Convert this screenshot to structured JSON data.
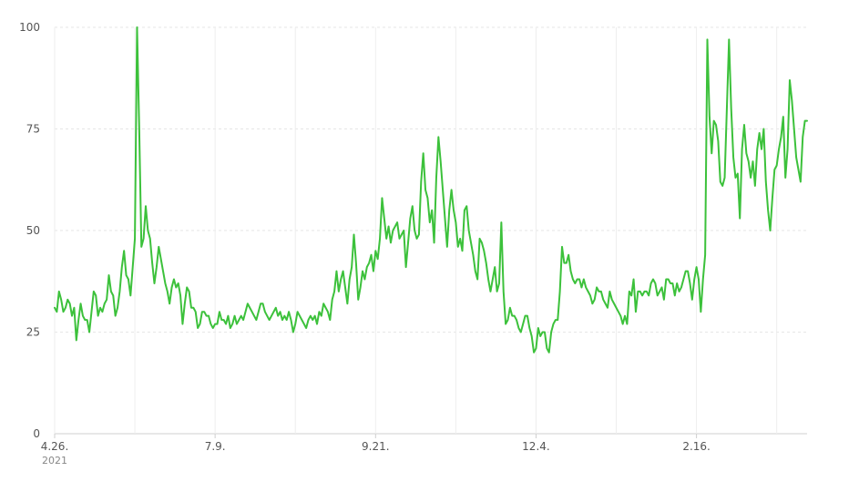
{
  "chart_data": {
    "type": "line",
    "title": "",
    "xlabel": "",
    "ylabel": "",
    "ylim": [
      0,
      100
    ],
    "y_ticks": [
      0,
      25,
      50,
      75,
      100
    ],
    "y_tick_labels": [
      "0",
      "25",
      "50",
      "75",
      "100"
    ],
    "x_ticks": [
      {
        "label": "4.26.",
        "index": 0
      },
      {
        "label": "7.9.",
        "index": 74
      },
      {
        "label": "9.21.",
        "index": 148
      },
      {
        "label": "12.4.",
        "index": 222
      },
      {
        "label": "2.16.",
        "index": 296
      }
    ],
    "x_year_label": "2021",
    "grid": true,
    "legend": "none",
    "color": "#3cc13b",
    "series": [
      {
        "values": [
          31,
          30,
          35,
          33,
          30,
          31,
          33,
          32,
          29,
          31,
          23,
          28,
          32,
          29,
          28,
          28,
          25,
          30,
          35,
          34,
          29,
          31,
          30,
          32,
          33,
          39,
          35,
          34,
          29,
          31,
          35,
          41,
          45,
          39,
          38,
          34,
          41,
          48,
          100,
          75,
          46,
          48,
          56,
          50,
          48,
          42,
          37,
          41,
          46,
          43,
          40,
          37,
          35,
          32,
          36,
          38,
          36,
          37,
          34,
          27,
          32,
          36,
          35,
          31,
          31,
          30,
          26,
          27,
          30,
          30,
          29,
          29,
          27,
          26,
          27,
          27,
          30,
          28,
          28,
          27,
          29,
          26,
          27,
          29,
          27,
          28,
          29,
          28,
          30,
          32,
          31,
          30,
          29,
          28,
          30,
          32,
          32,
          30,
          29,
          28,
          29,
          30,
          31,
          29,
          30,
          28,
          29,
          28,
          30,
          28,
          25,
          27,
          30,
          29,
          28,
          27,
          26,
          28,
          29,
          28,
          29,
          27,
          30,
          29,
          32,
          31,
          30,
          28,
          33,
          35,
          40,
          35,
          38,
          40,
          36,
          32,
          38,
          41,
          49,
          42,
          33,
          36,
          40,
          38,
          41,
          42,
          44,
          40,
          45,
          43,
          48,
          58,
          53,
          48,
          51,
          47,
          50,
          51,
          52,
          48,
          49,
          50,
          41,
          47,
          53,
          56,
          50,
          48,
          49,
          62,
          69,
          60,
          58,
          52,
          55,
          47,
          63,
          73,
          67,
          60,
          53,
          46,
          55,
          60,
          55,
          52,
          46,
          48,
          45,
          55,
          56,
          50,
          47,
          44,
          40,
          38,
          48,
          47,
          45,
          42,
          38,
          35,
          38,
          41,
          35,
          37,
          52,
          35,
          27,
          28,
          31,
          29,
          29,
          28,
          26,
          25,
          27,
          29,
          29,
          26,
          24,
          20,
          21,
          26,
          24,
          25,
          25,
          21,
          20,
          25,
          27,
          28,
          28,
          35,
          46,
          42,
          42,
          44,
          40,
          38,
          37,
          38,
          38,
          36,
          38,
          36,
          35,
          34,
          32,
          33,
          36,
          35,
          35,
          33,
          32,
          31,
          35,
          33,
          32,
          31,
          30,
          29,
          27,
          29,
          27,
          35,
          34,
          38,
          30,
          35,
          35,
          34,
          35,
          35,
          34,
          37,
          38,
          37,
          34,
          35,
          36,
          33,
          38,
          38,
          37,
          37,
          34,
          37,
          35,
          36,
          38,
          40,
          40,
          37,
          33,
          38,
          41,
          38,
          30,
          38,
          44,
          97,
          78,
          69,
          77,
          76,
          72,
          62,
          61,
          63,
          80,
          97,
          80,
          68,
          63,
          64,
          53,
          70,
          76,
          69,
          67,
          63,
          67,
          61,
          70,
          74,
          70,
          75,
          62,
          55,
          50,
          58,
          65,
          66,
          70,
          73,
          78,
          63,
          70,
          87,
          82,
          75,
          68,
          65,
          62,
          73,
          77,
          77
        ]
      }
    ]
  }
}
